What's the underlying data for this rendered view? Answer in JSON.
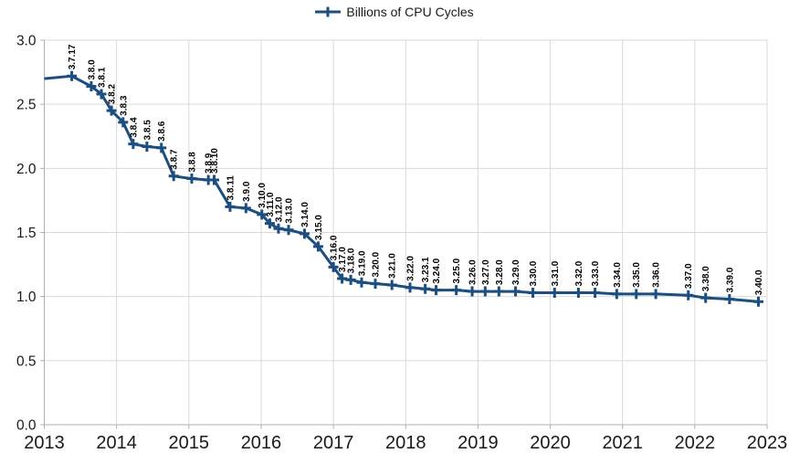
{
  "chart": {
    "legend_label": "Billions of CPU Cycles"
  },
  "chart_data": {
    "type": "line",
    "title": "",
    "legend": [
      "Billions of CPU Cycles"
    ],
    "legend_position": "top-center",
    "grid": true,
    "x_axis": {
      "min": 2013,
      "max": 2023,
      "ticks": [
        2013,
        2014,
        2015,
        2016,
        2017,
        2018,
        2019,
        2020,
        2021,
        2022,
        2023
      ]
    },
    "y_axis": {
      "min": 0.0,
      "max": 3.0,
      "ticks": [
        3.0,
        2.5,
        2.0,
        1.5,
        1.0,
        0.5,
        0.0
      ],
      "decimals": 1
    },
    "colors": {
      "series": "#1c4e80",
      "grid": "#d9d9d9",
      "axis": "#b0b0b0",
      "tick_text": "#1a1a1a",
      "point_label_text": "#000000",
      "background": "#ffffff"
    },
    "lead_in_point": {
      "x": 2013.0,
      "value": 2.7
    },
    "series": [
      {
        "name": "Billions of CPU Cycles",
        "marker": "plus",
        "points": [
          {
            "label": "3.7.17",
            "x": 2013.38,
            "value": 2.72
          },
          {
            "label": "3.8.0",
            "x": 2013.65,
            "value": 2.64
          },
          {
            "label": "3.8.1",
            "x": 2013.79,
            "value": 2.58
          },
          {
            "label": "3.8.2",
            "x": 2013.93,
            "value": 2.45
          },
          {
            "label": "3.8.3",
            "x": 2014.09,
            "value": 2.36
          },
          {
            "label": "3.8.4",
            "x": 2014.23,
            "value": 2.19
          },
          {
            "label": "3.8.5",
            "x": 2014.42,
            "value": 2.17
          },
          {
            "label": "3.8.6",
            "x": 2014.62,
            "value": 2.16
          },
          {
            "label": "3.8.7",
            "x": 2014.79,
            "value": 1.94
          },
          {
            "label": "3.8.8",
            "x": 2015.04,
            "value": 1.92
          },
          {
            "label": "3.8.9",
            "x": 2015.27,
            "value": 1.91
          },
          {
            "label": "3.8.10",
            "x": 2015.35,
            "value": 1.91
          },
          {
            "label": "3.8.11",
            "x": 2015.57,
            "value": 1.7
          },
          {
            "label": "3.9.0",
            "x": 2015.79,
            "value": 1.69
          },
          {
            "label": "3.10.0",
            "x": 2016.01,
            "value": 1.64
          },
          {
            "label": "3.11.0",
            "x": 2016.12,
            "value": 1.57
          },
          {
            "label": "3.12.0",
            "x": 2016.24,
            "value": 1.53
          },
          {
            "label": "3.13.0",
            "x": 2016.38,
            "value": 1.52
          },
          {
            "label": "3.14.0",
            "x": 2016.6,
            "value": 1.49
          },
          {
            "label": "3.15.0",
            "x": 2016.79,
            "value": 1.39
          },
          {
            "label": "3.16.0",
            "x": 2017.0,
            "value": 1.23
          },
          {
            "label": "3.17.0",
            "x": 2017.12,
            "value": 1.14
          },
          {
            "label": "3.18.0",
            "x": 2017.24,
            "value": 1.13
          },
          {
            "label": "3.19.0",
            "x": 2017.39,
            "value": 1.11
          },
          {
            "label": "3.20.0",
            "x": 2017.58,
            "value": 1.1
          },
          {
            "label": "3.21.0",
            "x": 2017.81,
            "value": 1.09
          },
          {
            "label": "3.22.0",
            "x": 2018.06,
            "value": 1.07
          },
          {
            "label": "3.23.1",
            "x": 2018.27,
            "value": 1.06
          },
          {
            "label": "3.24.0",
            "x": 2018.42,
            "value": 1.05
          },
          {
            "label": "3.25.0",
            "x": 2018.7,
            "value": 1.05
          },
          {
            "label": "3.26.0",
            "x": 2018.92,
            "value": 1.04
          },
          {
            "label": "3.27.0",
            "x": 2019.1,
            "value": 1.04
          },
          {
            "label": "3.28.0",
            "x": 2019.29,
            "value": 1.04
          },
          {
            "label": "3.29.0",
            "x": 2019.52,
            "value": 1.04
          },
          {
            "label": "3.30.0",
            "x": 2019.76,
            "value": 1.03
          },
          {
            "label": "3.31.0",
            "x": 2020.06,
            "value": 1.03
          },
          {
            "label": "3.32.0",
            "x": 2020.39,
            "value": 1.03
          },
          {
            "label": "3.33.0",
            "x": 2020.62,
            "value": 1.03
          },
          {
            "label": "3.34.0",
            "x": 2020.92,
            "value": 1.02
          },
          {
            "label": "3.35.0",
            "x": 2021.19,
            "value": 1.02
          },
          {
            "label": "3.36.0",
            "x": 2021.46,
            "value": 1.02
          },
          {
            "label": "3.37.0",
            "x": 2021.91,
            "value": 1.01
          },
          {
            "label": "3.38.0",
            "x": 2022.15,
            "value": 0.99
          },
          {
            "label": "3.39.0",
            "x": 2022.48,
            "value": 0.98
          },
          {
            "label": "3.40.0",
            "x": 2022.88,
            "value": 0.96
          }
        ]
      }
    ]
  }
}
